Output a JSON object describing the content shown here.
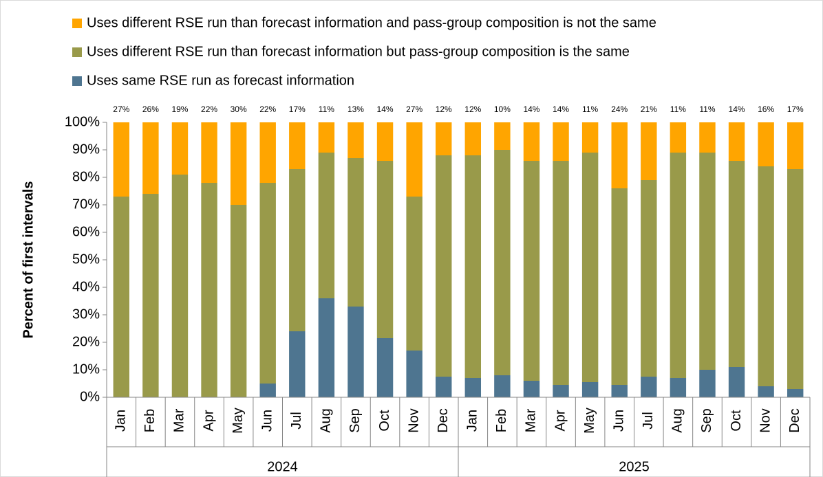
{
  "chart_data": {
    "type": "stacked-bar",
    "y_label": "Percent of first intervals",
    "categories": [
      "Jan",
      "Feb",
      "Mar",
      "Apr",
      "May",
      "Jun",
      "Jul",
      "Aug",
      "Sep",
      "Oct",
      "Nov",
      "Dec",
      "Jan",
      "Feb",
      "Mar",
      "Apr",
      "May",
      "Jun",
      "Jul",
      "Aug",
      "Sep",
      "Oct",
      "Nov",
      "Dec"
    ],
    "category_groups": [
      "2024",
      "2025"
    ],
    "series": [
      {
        "name": "Uses same RSE run as forecast information",
        "color": "#4e7590",
        "values": [
          0,
          0,
          0,
          0,
          0,
          5,
          24,
          36,
          33,
          21.5,
          17,
          7.5,
          7,
          8,
          6,
          4.5,
          5.5,
          4.5,
          7.5,
          7,
          10,
          11,
          4,
          3
        ]
      },
      {
        "name": "Uses different RSE run than forecast information but pass-group composition is the same",
        "color": "#999a4a",
        "values": [
          73,
          74,
          81,
          78,
          70,
          73,
          59,
          53,
          54,
          64.5,
          56,
          80.5,
          81,
          82,
          80,
          81.5,
          83.5,
          71.5,
          71.5,
          82,
          79,
          75,
          80,
          80
        ]
      },
      {
        "name": "Uses different RSE run than forecast information and pass-group composition is not the same",
        "color": "#ffa500",
        "values": [
          27,
          26,
          19,
          22,
          30,
          22,
          17,
          11,
          13,
          14,
          27,
          12,
          12,
          10,
          14,
          14,
          11,
          24,
          21,
          11,
          11,
          14,
          16,
          17
        ],
        "value_labels": [
          "27%",
          "26%",
          "19%",
          "22%",
          "30%",
          "22%",
          "17%",
          "11%",
          "13%",
          "14%",
          "27%",
          "12%",
          "12%",
          "10%",
          "14%",
          "14%",
          "11%",
          "24%",
          "21%",
          "11%",
          "11%",
          "14%",
          "16%",
          "17%"
        ]
      }
    ],
    "ylim": [
      0,
      100
    ],
    "yticks": [
      {
        "value": 0,
        "label": "0%"
      },
      {
        "value": 10,
        "label": "10%"
      },
      {
        "value": 20,
        "label": "20%"
      },
      {
        "value": 30,
        "label": "30%"
      },
      {
        "value": 40,
        "label": "40%"
      },
      {
        "value": 50,
        "label": "50%"
      },
      {
        "value": 60,
        "label": "60%"
      },
      {
        "value": 70,
        "label": "70%"
      },
      {
        "value": 80,
        "label": "80%"
      },
      {
        "value": 90,
        "label": "90%"
      },
      {
        "value": 100,
        "label": "100%"
      }
    ],
    "grid": false
  }
}
